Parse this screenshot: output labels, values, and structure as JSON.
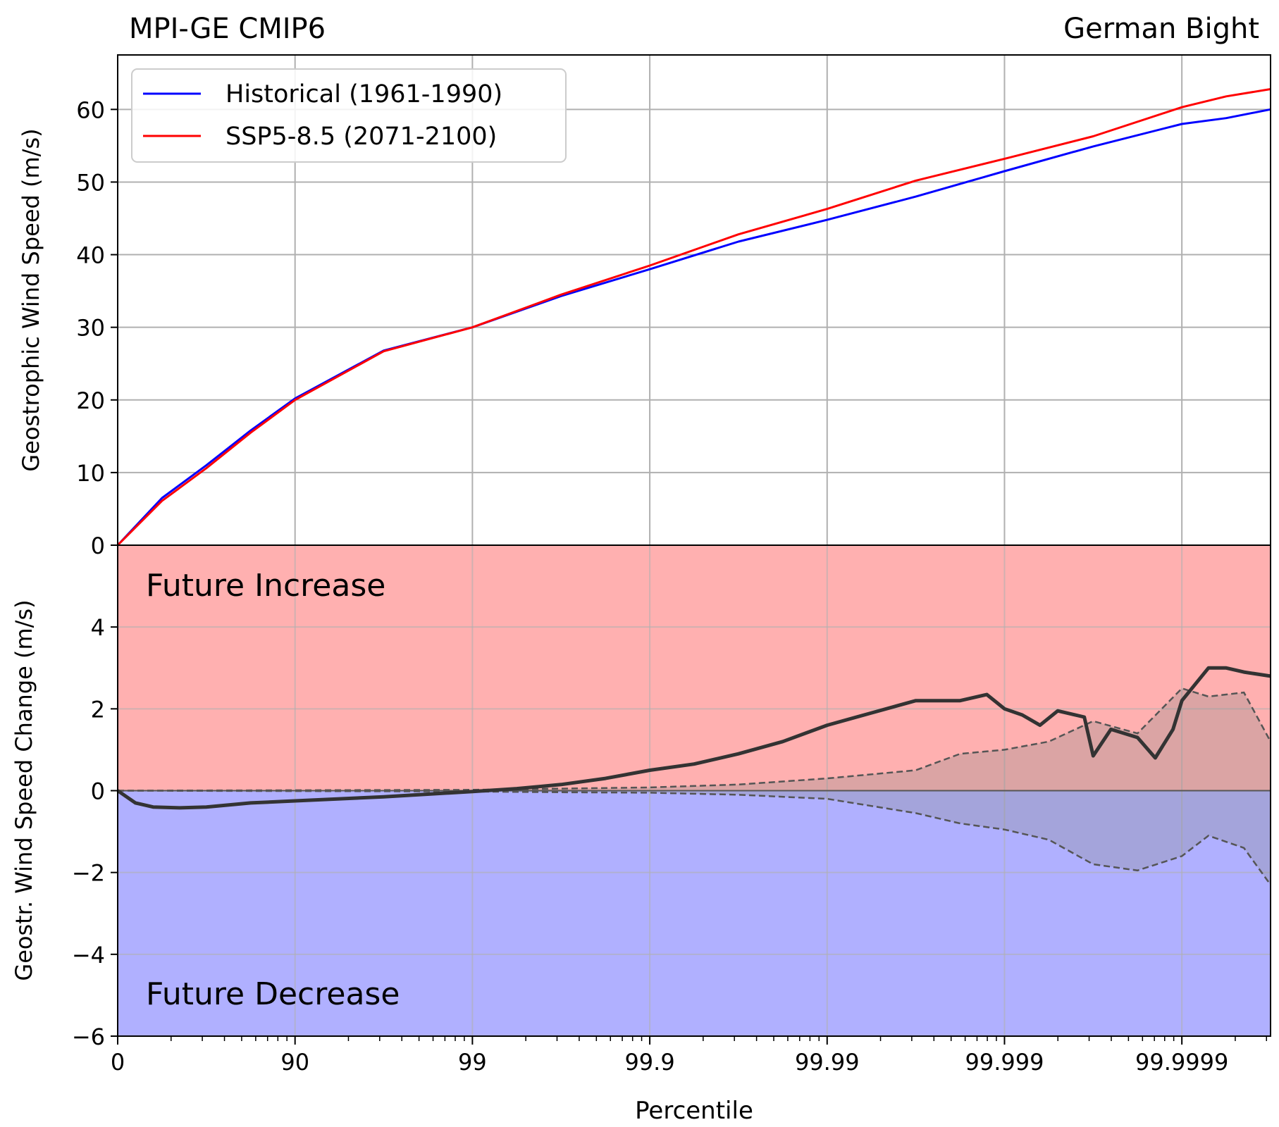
{
  "chart_data": [
    {
      "type": "line",
      "title_left": "MPI-GE CMIP6",
      "title_right": "German Bight",
      "ylabel": "Geostrophic Wind Speed (m/s)",
      "ylim": [
        0,
        67.5
      ],
      "yticks": [
        0,
        10,
        20,
        30,
        40,
        50,
        60
      ],
      "x_scale": "reciprocal-percentile (-log10(1 - p/100))",
      "x": [
        0.0,
        0.25,
        0.5,
        0.75,
        1.0,
        1.5,
        2.0,
        2.5,
        3.0,
        3.5,
        4.0,
        4.5,
        5.0,
        5.5,
        6.0,
        6.25,
        6.5
      ],
      "grid": true,
      "legend": "top-left",
      "series": [
        {
          "name": "Historical (1961-1990)",
          "color": "#0000ff",
          "values": [
            0.0,
            6.5,
            11.0,
            15.8,
            20.2,
            26.8,
            30.0,
            34.3,
            38.0,
            41.8,
            44.8,
            48.0,
            51.5,
            54.9,
            58.0,
            58.8,
            60.0
          ]
        },
        {
          "name": "SSP5-8.5 (2071-2100)",
          "color": "#ff0000",
          "values": [
            0.0,
            6.1,
            10.6,
            15.5,
            20.0,
            26.7,
            30.0,
            34.5,
            38.5,
            42.8,
            46.3,
            50.2,
            53.2,
            56.3,
            60.3,
            61.8,
            62.8
          ]
        }
      ]
    },
    {
      "type": "line",
      "xlabel": "Percentile",
      "ylabel": "Geostr. Wind Speed Change (m/s)",
      "ylim": [
        -6,
        6
      ],
      "yticks": [
        -6,
        -4,
        -2,
        0,
        2,
        4
      ],
      "ytick_labels": [
        "−6",
        "−4",
        "−2",
        "0",
        "2",
        "4"
      ],
      "xticks": [
        0,
        1,
        2,
        3,
        4,
        5,
        6
      ],
      "xtick_labels": [
        "0",
        "90",
        "99",
        "99.9",
        "99.99",
        "99.999",
        "99.9999"
      ],
      "grid": true,
      "regions": [
        {
          "label": "Future Increase",
          "from": 0,
          "to": 6,
          "color": "#ffb0b0"
        },
        {
          "label": "Future Decrease",
          "from": -6,
          "to": 0,
          "color": "#b0b0ff"
        }
      ],
      "difference": {
        "color": "#333333",
        "x": [
          0.0,
          0.1,
          0.2,
          0.35,
          0.5,
          0.75,
          1.0,
          1.5,
          2.0,
          2.25,
          2.5,
          2.75,
          3.0,
          3.25,
          3.5,
          3.75,
          4.0,
          4.25,
          4.5,
          4.75,
          4.9,
          5.0,
          5.1,
          5.2,
          5.3,
          5.45,
          5.5,
          5.6,
          5.75,
          5.85,
          5.95,
          6.0,
          6.15,
          6.25,
          6.35,
          6.5
        ],
        "values": [
          0.0,
          -0.3,
          -0.4,
          -0.42,
          -0.4,
          -0.3,
          -0.25,
          -0.15,
          -0.02,
          0.05,
          0.15,
          0.3,
          0.5,
          0.65,
          0.9,
          1.2,
          1.6,
          1.9,
          2.2,
          2.2,
          2.35,
          2.0,
          1.85,
          1.6,
          1.95,
          1.8,
          0.85,
          1.5,
          1.3,
          0.8,
          1.5,
          2.2,
          3.0,
          3.0,
          2.9,
          2.8
        ]
      },
      "envelope": {
        "color": "#555555",
        "x": [
          0.0,
          2.0,
          2.5,
          3.0,
          3.5,
          4.0,
          4.5,
          4.75,
          5.0,
          5.25,
          5.5,
          5.75,
          6.0,
          6.15,
          6.35,
          6.5
        ],
        "upper": [
          0.0,
          0.02,
          0.05,
          0.08,
          0.15,
          0.3,
          0.5,
          0.9,
          1.0,
          1.2,
          1.7,
          1.4,
          2.5,
          2.3,
          2.4,
          1.2
        ],
        "lower": [
          0.0,
          -0.02,
          -0.04,
          -0.05,
          -0.1,
          -0.2,
          -0.55,
          -0.8,
          -0.95,
          -1.2,
          -1.8,
          -1.95,
          -1.6,
          -1.1,
          -1.4,
          -2.3
        ]
      }
    }
  ]
}
